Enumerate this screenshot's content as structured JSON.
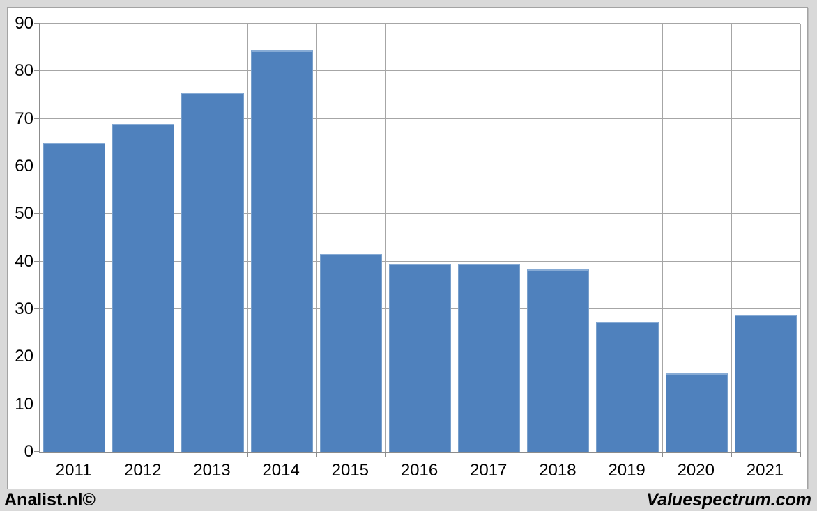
{
  "chart_data": {
    "type": "bar",
    "categories": [
      "2011",
      "2012",
      "2013",
      "2014",
      "2015",
      "2016",
      "2017",
      "2018",
      "2019",
      "2020",
      "2021"
    ],
    "values": [
      65,
      69,
      75.5,
      84.5,
      41.5,
      39.5,
      39.5,
      38.4,
      27.4,
      16.5,
      28.8
    ],
    "title": "",
    "xlabel": "",
    "ylabel": "",
    "ylim": [
      0,
      90
    ],
    "yticks": [
      0,
      10,
      20,
      30,
      40,
      50,
      60,
      70,
      80,
      90
    ],
    "grid": true,
    "legend": "none",
    "bar_color": "#4f81bd",
    "bar_edge_color": "#87abd5",
    "gridline_color": "#a6a6a6",
    "axis_color": "#8c8c8c",
    "plot_background": "#ffffff",
    "frame_background": "#d9d9d9"
  },
  "footer": {
    "left_text": "Analist.nl©",
    "right_text": "Valuespectrum.com"
  }
}
